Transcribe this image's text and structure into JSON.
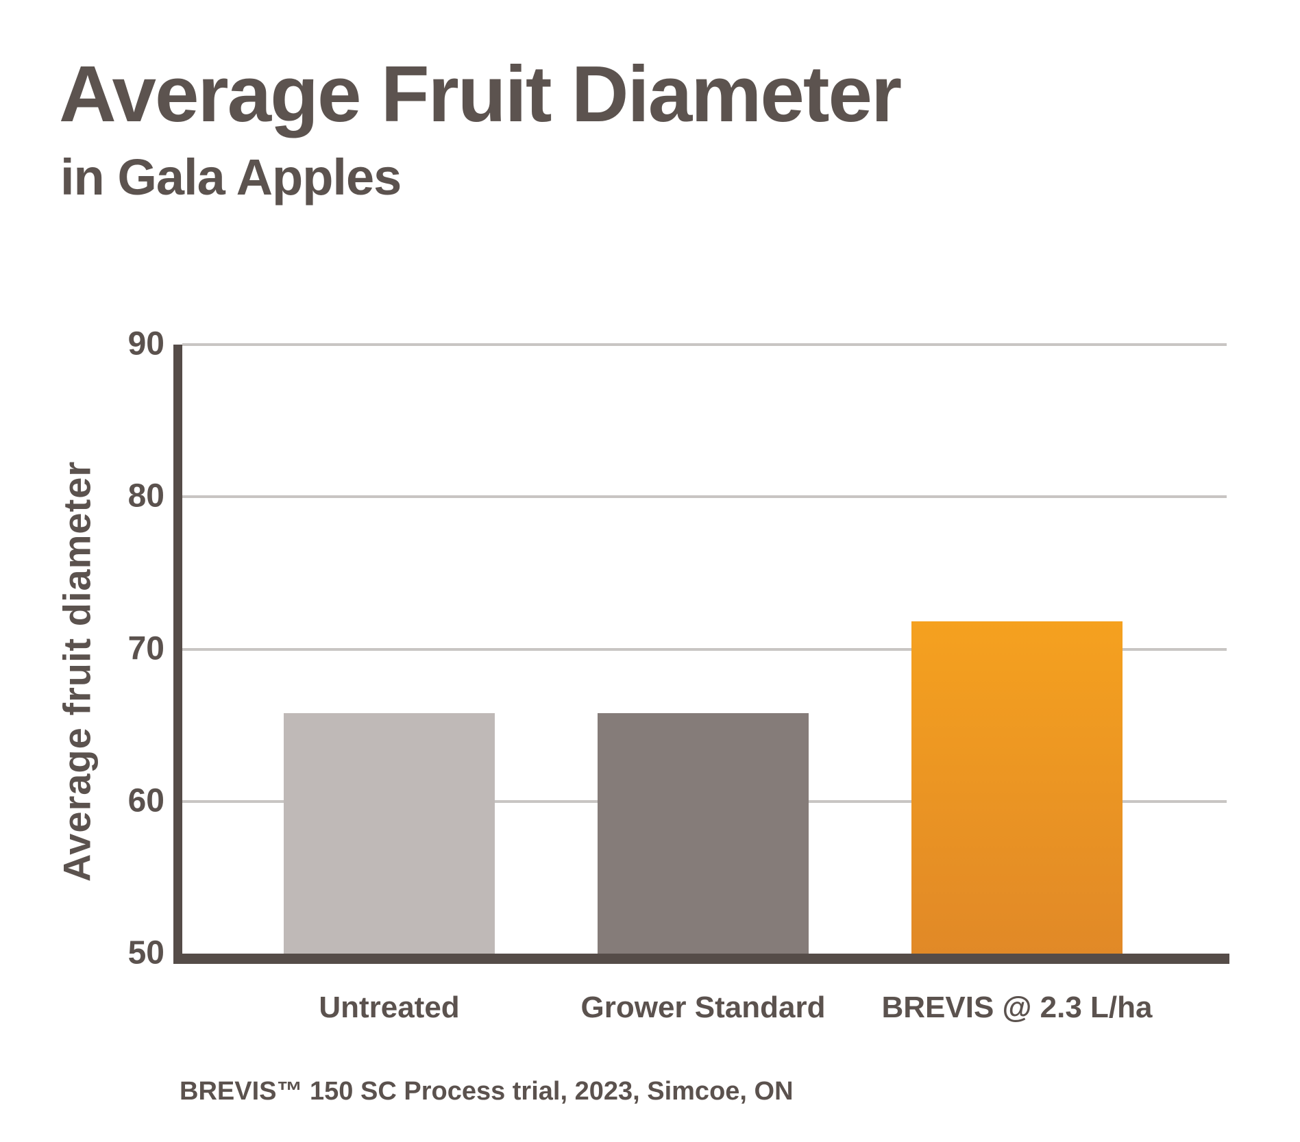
{
  "header": {
    "title": "Average Fruit Diameter",
    "subtitle": "in Gala Apples"
  },
  "chart_data": {
    "type": "bar",
    "title": "Average Fruit Diameter in Gala Apples",
    "categories": [
      "Untreated",
      "Grower Standard",
      "BREVIS @ 2.3 L/ha"
    ],
    "values": [
      65.8,
      65.8,
      71.8
    ],
    "xlabel": "",
    "ylabel": "Average fruit diameter",
    "ylim": [
      50,
      90
    ],
    "yticks": [
      90,
      80,
      70,
      60,
      50
    ],
    "grid": "horizontal",
    "legend": "none"
  },
  "footnote": {
    "text": "BREVIS™ 150 SC Process trial, 2023, Simcoe, ON"
  },
  "colors": {
    "text": "#5B524E",
    "axis": "#554C48",
    "gridline": "#C8C5C3",
    "bar_fills": [
      "#BFB9B7",
      "#857C79",
      "gradient"
    ],
    "bar_brevis_top": "#F5A11F",
    "bar_brevis_bottom": "#E18927",
    "background": "#FFFFFF"
  }
}
